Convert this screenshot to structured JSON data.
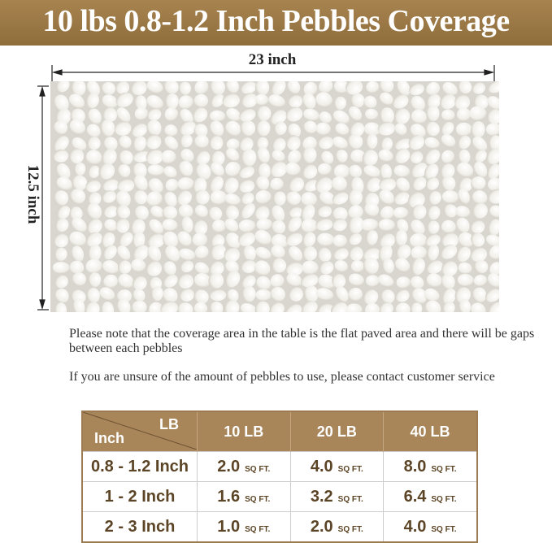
{
  "title": "10 lbs 0.8-1.2 Inch Pebbles Coverage",
  "dimensions": {
    "width": "23 inch",
    "height": "12.5 inch"
  },
  "notes": [
    "Please note that the coverage area in the table is the flat paved area and there will be gaps between each pebbles",
    "If you are unsure of the amount of pebbles to use, please contact customer service"
  ],
  "colors": {
    "banner": "#9a7845",
    "table_header": "#a8865a",
    "table_text": "#5c4526"
  },
  "table": {
    "corner_top": "LB",
    "corner_bottom": "Inch",
    "columns": [
      "10 LB",
      "20 LB",
      "40 LB"
    ],
    "unit": "SQ FT.",
    "rows": [
      {
        "size": "0.8 - 1.2 Inch",
        "values": [
          "2.0",
          "4.0",
          "8.0"
        ]
      },
      {
        "size": "1 - 2 Inch",
        "values": [
          "1.6",
          "3.2",
          "6.4"
        ]
      },
      {
        "size": "2 - 3 Inch",
        "values": [
          "1.0",
          "2.0",
          "4.0"
        ]
      }
    ]
  }
}
